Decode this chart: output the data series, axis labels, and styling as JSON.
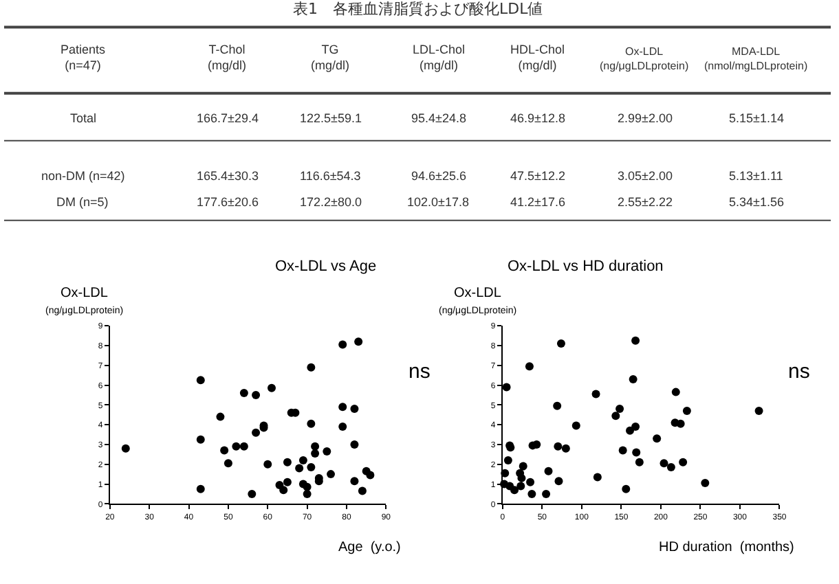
{
  "chart_data": [
    {
      "type": "other",
      "title": "表1　各種血清脂質および酸化LDL値",
      "annotations": [
        "Patients\n(n=47)",
        "T-Chol\n(mg/dl)",
        "TG\n(mg/dl)",
        "LDL-Chol\n(mg/dl)",
        "HDL-Chol\n(mg/dl)",
        "Ox-LDL\n(ng/μgLDLprotein)",
        "MDA-LDL\n(nmol/mgLDLprotein)",
        "Total",
        "166.7±29.4",
        "122.5±59.1",
        "95.4±24.8",
        "46.9±12.8",
        "2.99±2.00",
        "5.15±1.14",
        "non-DM (n=42)",
        "165.4±30.3",
        "116.6±54.3",
        "94.6±25.6",
        "47.5±12.2",
        "3.05±2.00",
        "5.13±1.11",
        "DM (n=5)",
        "177.6±20.6",
        "172.2±80.0",
        "102.0±17.8",
        "41.2±17.6",
        "2.55±2.22",
        "5.34±1.56"
      ]
    },
    {
      "type": "scatter",
      "title": "Ox-LDL vs Age",
      "xlabel": "Age  (y.o.)",
      "ylabel": "Ox-LDL\n(ng/μgLDLprotein)",
      "annotations": [
        "ns"
      ],
      "marker": "circle",
      "xlim": [
        20,
        90
      ],
      "xticks": [
        20,
        30,
        40,
        50,
        60,
        70,
        80,
        90
      ],
      "ylim": [
        0,
        9
      ],
      "yticks": [
        0,
        1,
        2,
        3,
        4,
        5,
        6,
        7,
        8,
        9
      ],
      "series": [
        {
          "color": "#000000",
          "x": [
            24,
            43,
            43,
            43,
            48,
            49,
            50,
            52,
            54,
            54,
            56,
            57,
            57,
            59,
            59,
            60,
            61,
            63,
            64,
            65,
            65,
            66,
            67,
            68,
            69,
            69,
            70,
            70,
            71,
            71,
            71,
            72,
            72,
            73,
            73,
            75,
            76,
            79,
            79,
            79,
            83,
            82,
            82,
            82,
            84,
            85,
            86
          ],
          "values": [
            2.8,
            6.25,
            3.25,
            0.75,
            4.4,
            2.7,
            2.05,
            2.9,
            2.9,
            5.6,
            0.5,
            5.5,
            3.6,
            3.95,
            3.85,
            2.0,
            5.85,
            0.95,
            0.7,
            1.1,
            2.1,
            4.6,
            4.6,
            1.8,
            2.2,
            1.0,
            0.85,
            0.5,
            6.9,
            4.05,
            1.85,
            2.9,
            2.55,
            1.3,
            1.15,
            2.65,
            1.5,
            8.05,
            4.9,
            3.9,
            8.2,
            4.8,
            3.0,
            1.15,
            0.65,
            1.65,
            1.45
          ]
        }
      ]
    },
    {
      "type": "scatter",
      "title": "Ox-LDL vs HD duration",
      "xlabel": "HD duration  (months)",
      "ylabel": "Ox-LDL\n(ng/μgLDLprotein)",
      "annotations": [
        "ns"
      ],
      "marker": "circle",
      "xlim": [
        0,
        350
      ],
      "xticks": [
        0,
        50,
        100,
        150,
        200,
        250,
        300,
        350
      ],
      "ylim": [
        0,
        9
      ],
      "yticks": [
        0,
        1,
        2,
        3,
        4,
        5,
        6,
        7,
        8,
        9
      ],
      "series": [
        {
          "color": "#000000",
          "x": [
            5,
            3,
            2,
            7,
            9,
            10,
            9,
            15,
            22,
            23,
            24,
            26,
            34,
            35,
            37,
            38,
            43,
            55,
            58,
            69,
            70,
            71,
            74,
            80,
            93,
            118,
            120,
            143,
            148,
            152,
            156,
            161,
            165,
            168,
            168,
            169,
            173,
            195,
            204,
            213,
            219,
            218,
            225,
            228,
            233,
            256,
            324
          ],
          "values": [
            5.9,
            1.55,
            1.0,
            2.2,
            2.95,
            2.85,
            0.9,
            0.7,
            1.55,
            0.9,
            1.3,
            1.9,
            6.95,
            1.1,
            0.5,
            2.95,
            3.0,
            0.5,
            1.65,
            4.95,
            2.9,
            1.15,
            8.1,
            2.8,
            3.95,
            5.55,
            1.35,
            4.45,
            4.8,
            2.7,
            0.75,
            3.7,
            6.3,
            8.25,
            3.9,
            2.6,
            2.1,
            3.3,
            2.05,
            1.85,
            5.65,
            4.1,
            4.05,
            2.1,
            4.7,
            1.05,
            4.7
          ]
        }
      ]
    }
  ]
}
